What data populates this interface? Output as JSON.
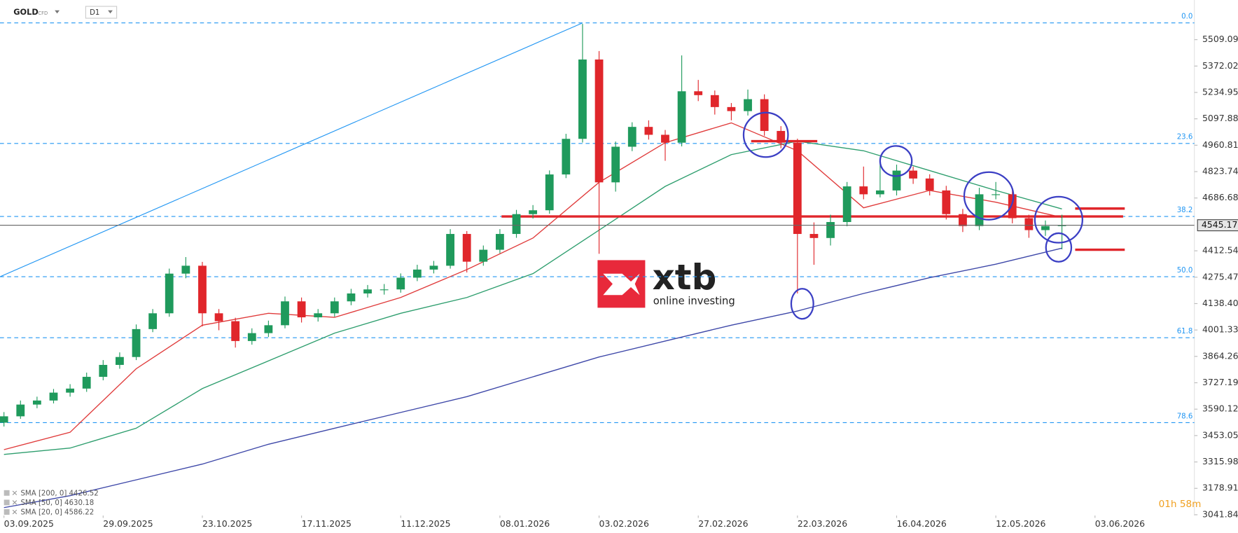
{
  "header": {
    "symbol": "GOLD",
    "instrument_type": "CFD",
    "timeframe": "D1"
  },
  "chart_data": {
    "type": "candlestick",
    "open": [
      3520,
      3553,
      3614,
      3635,
      3676,
      3697,
      3758,
      3820,
      3861,
      4006,
      4088,
      4294,
      4335,
      4088,
      4047,
      3944,
      3985,
      4026,
      4150,
      4067,
      4088,
      4150,
      4191,
      4212,
      4212,
      4273,
      4315,
      4335,
      4500,
      4356,
      4418,
      4500,
      4603,
      4623,
      4809,
      4994,
      5406,
      4768,
      4953,
      5056,
      5015,
      4974,
      5241,
      5221,
      5159,
      5138,
      5200,
      5035,
      4974,
      4500,
      4479,
      4562,
      4747,
      4706,
      4726,
      4829,
      4788,
      4726,
      4603,
      4541,
      4706,
      4706,
      4582,
      4520,
      4541
    ],
    "high": [
      3575,
      3635,
      3655,
      3695,
      3720,
      3780,
      3845,
      3885,
      4030,
      4110,
      4320,
      4380,
      4355,
      4110,
      4065,
      4010,
      4050,
      4175,
      4170,
      4110,
      4170,
      4215,
      4235,
      4240,
      4295,
      4340,
      4360,
      4525,
      4515,
      4440,
      4525,
      4625,
      4650,
      4830,
      5020,
      5591,
      5450,
      4980,
      5080,
      5090,
      5040,
      5427,
      5300,
      5245,
      5180,
      5250,
      5225,
      5060,
      4995,
      4560,
      4600,
      4770,
      4850,
      4880,
      4860,
      4850,
      4810,
      4750,
      4630,
      4740,
      4770,
      4730,
      4600,
      4570,
      4600
    ],
    "low": [
      3500,
      3540,
      3595,
      3620,
      3655,
      3680,
      3740,
      3800,
      3845,
      3990,
      4070,
      4270,
      4020,
      4000,
      3910,
      3925,
      3965,
      4010,
      4040,
      4045,
      4070,
      4130,
      4170,
      4185,
      4195,
      4255,
      4295,
      4320,
      4300,
      4335,
      4400,
      4480,
      4580,
      4605,
      4790,
      4975,
      4397,
      4720,
      4930,
      4990,
      4880,
      4955,
      5190,
      5120,
      5090,
      5115,
      5010,
      4945,
      4191,
      4340,
      4440,
      4540,
      4680,
      4690,
      4700,
      4760,
      4700,
      4575,
      4510,
      4520,
      4680,
      4555,
      4480,
      4490,
      4420
    ],
    "close": [
      3553,
      3614,
      3635,
      3676,
      3697,
      3758,
      3820,
      3861,
      4006,
      4088,
      4294,
      4335,
      4088,
      4047,
      3944,
      3985,
      4026,
      4150,
      4067,
      4088,
      4150,
      4191,
      4212,
      4212,
      4273,
      4315,
      4335,
      4500,
      4356,
      4418,
      4500,
      4603,
      4623,
      4809,
      4994,
      5406,
      4768,
      4953,
      5056,
      5015,
      4974,
      5241,
      5221,
      5159,
      5138,
      5200,
      5035,
      4974,
      4500,
      4479,
      4562,
      4747,
      4706,
      4726,
      4829,
      4788,
      4726,
      4603,
      4541,
      4706,
      4706,
      4582,
      4520,
      4541,
      4545
    ],
    "up_color": "#1f9a5c",
    "down_color": "#e0262b",
    "xlim": [
      -0.24,
      72.01
    ],
    "xticks": [
      {
        "value": 0,
        "label": "03.09.2025"
      },
      {
        "value": 6,
        "label": "29.09.2025"
      },
      {
        "value": 12,
        "label": "23.10.2025"
      },
      {
        "value": 18,
        "label": "17.11.2025"
      },
      {
        "value": 24,
        "label": "11.12.2025"
      },
      {
        "value": 30,
        "label": "08.01.2026"
      },
      {
        "value": 36,
        "label": "03.02.2026"
      },
      {
        "value": 42,
        "label": "27.02.2026"
      },
      {
        "value": 48,
        "label": "22.03.2026"
      },
      {
        "value": 54,
        "label": "16.04.2026"
      },
      {
        "value": 60,
        "label": "12.05.2026"
      },
      {
        "value": 66,
        "label": "03.06.2026"
      }
    ],
    "ylim": [
      2947,
      5715
    ],
    "yticks": [
      5509.09,
      5372.02,
      5234.95,
      5097.88,
      4960.81,
      4823.74,
      4686.68,
      4412.54,
      4275.47,
      {
        "value": 4138.4,
        "label": "4138.40"
      },
      4001.33,
      3864.26,
      3727.19,
      3590.12,
      3453.05,
      3315.98,
      3178.91,
      3041.84
    ],
    "series": [
      {
        "name": "SMA [200, 0] 4426.52",
        "color": "#3d47a8",
        "x": [
          0,
          4,
          8,
          12,
          16,
          20,
          24,
          28,
          32,
          36,
          40,
          44,
          48,
          52,
          56,
          60,
          64
        ],
        "values": [
          3079,
          3141,
          3223,
          3305,
          3408,
          3491,
          3573,
          3655,
          3758,
          3861,
          3944,
          4026,
          4100,
          4191,
          4273,
          4343,
          4426
        ]
      },
      {
        "name": "SMA [50, 0] 4630.18",
        "color": "#2e9e6e",
        "x": [
          0,
          4,
          8,
          12,
          16,
          20,
          24,
          28,
          32,
          36,
          40,
          44,
          48,
          52,
          56,
          60,
          64
        ],
        "values": [
          3355,
          3388,
          3491,
          3697,
          3841,
          3985,
          4088,
          4170,
          4294,
          4520,
          4747,
          4912,
          4982,
          4932,
          4829,
          4726,
          4630
        ]
      },
      {
        "name": "SMA [20, 0] 4586.22",
        "color": "#e03b3b",
        "x": [
          0,
          4,
          8,
          12,
          16,
          20,
          24,
          28,
          32,
          36,
          40,
          44,
          48,
          52,
          56,
          60,
          64
        ],
        "values": [
          3380,
          3470,
          3800,
          4026,
          4088,
          4067,
          4170,
          4315,
          4479,
          4768,
          4974,
          5077,
          4932,
          4636,
          4726,
          4665,
          4586
        ]
      }
    ],
    "fib_levels": [
      {
        "label": "0.0",
        "value": 5596
      },
      {
        "label": "23.6",
        "value": 4970
      },
      {
        "label": "38.2",
        "value": 4591
      },
      {
        "label": "50.0",
        "value": 4278
      },
      {
        "label": "61.8",
        "value": 3961
      },
      {
        "label": "78.6",
        "value": 3520
      }
    ],
    "fib_color": "#2196f3",
    "trend_line": {
      "x": [
        -0.24,
        35
      ],
      "values": [
        4278,
        5596
      ]
    },
    "levels": [
      {
        "value": 4591,
        "x": [
          30.1,
          67.7
        ]
      },
      {
        "value": 4632,
        "x": [
          64.8,
          67.8
        ]
      },
      {
        "value": 4418,
        "x": [
          64.8,
          67.8
        ]
      },
      {
        "value": 4982,
        "x": [
          45.2,
          49.2
        ]
      }
    ],
    "level_color": "#e0262b",
    "last_price": 4545.17,
    "countdown": "01h 58m"
  },
  "logo": {
    "name": "xtb",
    "tagline": "online investing"
  }
}
